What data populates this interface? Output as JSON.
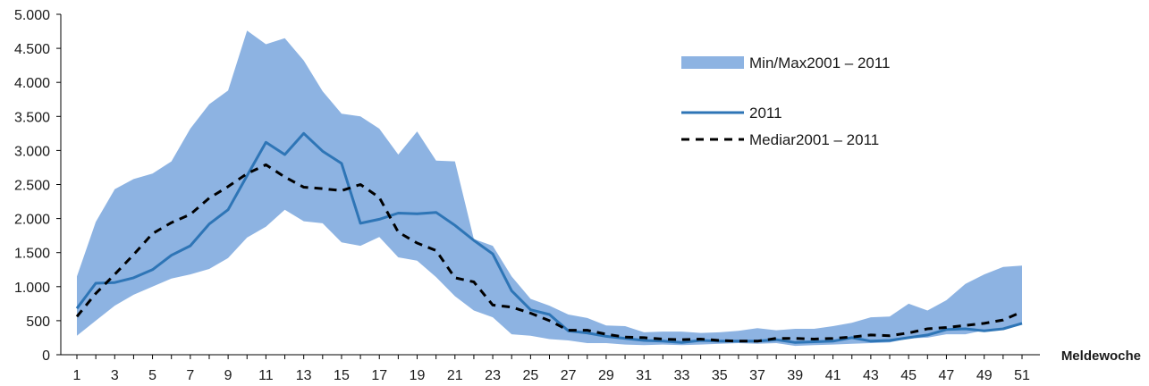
{
  "chart_data": {
    "type": "line",
    "xlabel": "Meldewoche",
    "ylabel": "",
    "ylim": [
      0,
      5000
    ],
    "xlim": [
      1,
      51
    ],
    "x": [
      1,
      2,
      3,
      4,
      5,
      6,
      7,
      8,
      9,
      10,
      11,
      12,
      13,
      14,
      15,
      16,
      17,
      18,
      19,
      20,
      21,
      22,
      23,
      24,
      25,
      26,
      27,
      28,
      29,
      30,
      31,
      32,
      33,
      34,
      35,
      36,
      37,
      38,
      39,
      40,
      41,
      42,
      43,
      44,
      45,
      46,
      47,
      48,
      49,
      50,
      51
    ],
    "x_ticks": [
      1,
      3,
      5,
      7,
      9,
      11,
      13,
      15,
      17,
      19,
      21,
      23,
      25,
      27,
      29,
      31,
      33,
      35,
      37,
      39,
      41,
      43,
      45,
      47,
      49,
      51
    ],
    "y_ticks": [
      0,
      500,
      1000,
      1500,
      2000,
      2500,
      3000,
      3500,
      4000,
      4500,
      5000
    ],
    "y_tick_labels": [
      "0",
      "500",
      "1.000",
      "1.500",
      "2.000",
      "2.500",
      "3.000",
      "3.500",
      "4.000",
      "4.500",
      "5.000"
    ],
    "band": {
      "name": "Min/Max2001 – 2011",
      "color": "#8db3e2",
      "max": [
        1150,
        1950,
        2430,
        2580,
        2660,
        2840,
        3320,
        3680,
        3880,
        4760,
        4560,
        4650,
        4320,
        3870,
        3540,
        3500,
        3320,
        2940,
        3280,
        2850,
        2840,
        1700,
        1600,
        1150,
        820,
        720,
        590,
        540,
        430,
        420,
        330,
        340,
        340,
        320,
        330,
        350,
        390,
        360,
        380,
        380,
        420,
        470,
        550,
        560,
        750,
        650,
        800,
        1040,
        1180,
        1290,
        1310
      ],
      "min": [
        280,
        500,
        720,
        880,
        1000,
        1120,
        1180,
        1260,
        1420,
        1720,
        1880,
        2130,
        1960,
        1930,
        1650,
        1600,
        1730,
        1430,
        1380,
        1140,
        860,
        650,
        550,
        300,
        280,
        230,
        210,
        170,
        170,
        150,
        140,
        150,
        140,
        150,
        160,
        170,
        160,
        170,
        130,
        140,
        150,
        160,
        170,
        180,
        240,
        250,
        300,
        300,
        360,
        400,
        440
      ]
    },
    "series": [
      {
        "name": "2011",
        "color": "#2e75b6",
        "style": "solid",
        "values": [
          680,
          1050,
          1060,
          1130,
          1250,
          1460,
          1600,
          1920,
          2130,
          2630,
          3120,
          2940,
          3250,
          2990,
          2810,
          1930,
          1990,
          2080,
          2070,
          2090,
          1900,
          1680,
          1480,
          940,
          660,
          590,
          350,
          320,
          270,
          240,
          210,
          200,
          180,
          210,
          200,
          200,
          200,
          220,
          180,
          190,
          200,
          250,
          200,
          210,
          250,
          290,
          370,
          380,
          350,
          380,
          460
        ]
      },
      {
        "name": "Mediar2001 – 2011",
        "color": "#000000",
        "style": "dashed",
        "values": [
          560,
          900,
          1180,
          1470,
          1780,
          1940,
          2060,
          2300,
          2470,
          2660,
          2790,
          2610,
          2460,
          2440,
          2410,
          2500,
          2310,
          1800,
          1640,
          1530,
          1130,
          1070,
          730,
          700,
          610,
          500,
          360,
          360,
          300,
          260,
          250,
          230,
          220,
          230,
          210,
          200,
          200,
          240,
          240,
          230,
          240,
          260,
          290,
          280,
          320,
          380,
          400,
          430,
          460,
          510,
          630
        ]
      }
    ],
    "legend": {
      "placement": "top-right",
      "entries": [
        "Min/Max2001 – 2011",
        "2011",
        "Mediar2001 – 2011"
      ]
    },
    "grid": false
  }
}
